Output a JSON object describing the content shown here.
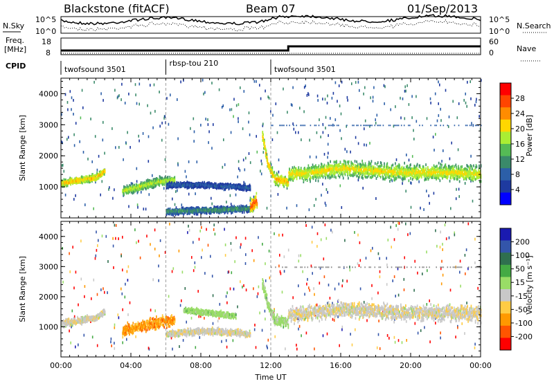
{
  "header": {
    "station": "Blackstone (fitACF)",
    "beam": "Beam 07",
    "date": "01/Sep/2013"
  },
  "top_panels": {
    "nsky_label": "N.Sky",
    "nsky_ticks": [
      "10^5",
      "10^0"
    ],
    "nsearch_label": "N.Search",
    "nsearch_ticks": [
      "10^5",
      "10^0"
    ],
    "freq_label_1": "Freq.",
    "freq_label_2": "[MHz]",
    "freq_ticks": [
      "18",
      "8"
    ],
    "nave_label": "Nave",
    "nave_ticks": [
      "60",
      "0"
    ],
    "cpid_label": "CPID",
    "freq_step": {
      "from": 10.5,
      "to": 13.0,
      "at_hour": 13.0
    },
    "cpid_segments": [
      {
        "label": "twofsound 3501",
        "start": 0,
        "end": 6
      },
      {
        "label": "rbsp-tou 210",
        "start": 6,
        "end": 12
      },
      {
        "label": "twofsound 3501",
        "start": 12,
        "end": 24
      }
    ]
  },
  "power_colorbar": {
    "label": "Power [dB]",
    "ticks": [
      "28",
      "24",
      "20",
      "16",
      "12",
      "8",
      "4"
    ],
    "colors": [
      "#ff0000",
      "#ff4500",
      "#ff8c00",
      "#ffd700",
      "#aaee33",
      "#55bb55",
      "#3a8a6a",
      "#2c5fa8",
      "#1e3aa0",
      "#0000ff"
    ]
  },
  "velocity_colorbar": {
    "label": "Velocity [m s⁻¹]",
    "ticks": [
      "200",
      "100",
      "50",
      "15",
      "-15",
      "-50",
      "-100",
      "-200"
    ],
    "colors": [
      "#1a1ab0",
      "#3355aa",
      "#2f6f4f",
      "#44aa44",
      "#99dd66",
      "#c8c8c8",
      "#ffcc44",
      "#ff9900",
      "#ff5500",
      "#ff0000"
    ]
  },
  "chart_data": [
    {
      "type": "heatmap",
      "panel": "power",
      "title": "",
      "xlabel": "",
      "ylabel": "Slant Range [km]",
      "xlim": [
        0,
        24
      ],
      "ylim": [
        0,
        4500
      ],
      "x_ticks": [],
      "y_ticks": [
        "1000",
        "2000",
        "3000",
        "4000"
      ],
      "scatter_bands": [
        {
          "x": [
            0,
            1.0,
            2.0,
            2.5
          ],
          "y": [
            1150,
            1250,
            1350,
            1550
          ],
          "width": 150,
          "value": 22
        },
        {
          "x": [
            3.5,
            4.5,
            5.5,
            6.5
          ],
          "y": [
            900,
            1050,
            1200,
            1250
          ],
          "width": 200,
          "value": 18
        },
        {
          "x": [
            6.0,
            8.0,
            10.0,
            10.8
          ],
          "y": [
            1100,
            1100,
            1050,
            1000
          ],
          "width": 120,
          "value": 8
        },
        {
          "x": [
            6.0,
            9.0,
            11.0
          ],
          "y": [
            250,
            300,
            350
          ],
          "width": 150,
          "value": 12
        },
        {
          "x": [
            10.8,
            11.2
          ],
          "y": [
            400,
            600
          ],
          "width": 300,
          "value": 26
        },
        {
          "x": [
            11.5,
            11.8,
            12.2,
            13.0
          ],
          "y": [
            2700,
            1800,
            1300,
            1200
          ],
          "width": 250,
          "value": 22
        },
        {
          "x": [
            13.0,
            14.5,
            16.0,
            18.0,
            20.0,
            22.0,
            24.0
          ],
          "y": [
            1450,
            1500,
            1650,
            1550,
            1500,
            1500,
            1450
          ],
          "width": 350,
          "value": 20
        }
      ]
    },
    {
      "type": "heatmap",
      "panel": "velocity",
      "title": "",
      "xlabel": "Time UT",
      "ylabel": "Slant Range [km]",
      "xlim": [
        0,
        24
      ],
      "ylim": [
        0,
        4500
      ],
      "x_ticks": [
        "00:00",
        "04:00",
        "08:00",
        "12:00",
        "16:00",
        "20:00",
        "00:00"
      ],
      "y_ticks": [
        "1000",
        "2000",
        "3000",
        "4000"
      ],
      "scatter_bands": [
        {
          "x": [
            0,
            1.0,
            2.0,
            2.5
          ],
          "y": [
            1150,
            1250,
            1350,
            1550
          ],
          "width": 150,
          "value": -5
        },
        {
          "x": [
            3.5,
            4.5,
            5.5,
            6.5
          ],
          "y": [
            900,
            1050,
            1200,
            1250
          ],
          "width": 250,
          "value": -60
        },
        {
          "x": [
            6.0,
            8.0,
            10.0,
            10.8
          ],
          "y": [
            800,
            900,
            850,
            800
          ],
          "width": 150,
          "value": -5
        },
        {
          "x": [
            7.0,
            8.5,
            10.0
          ],
          "y": [
            1600,
            1500,
            1400
          ],
          "width": 120,
          "value": 30
        },
        {
          "x": [
            11.5,
            11.8,
            12.2,
            13.0
          ],
          "y": [
            2500,
            1800,
            1300,
            1200
          ],
          "width": 250,
          "value": 25
        },
        {
          "x": [
            13.0,
            14.5,
            16.0,
            18.0,
            20.0,
            22.0,
            24.0
          ],
          "y": [
            1450,
            1500,
            1650,
            1550,
            1500,
            1500,
            1450
          ],
          "width": 350,
          "value": -5
        }
      ]
    }
  ]
}
